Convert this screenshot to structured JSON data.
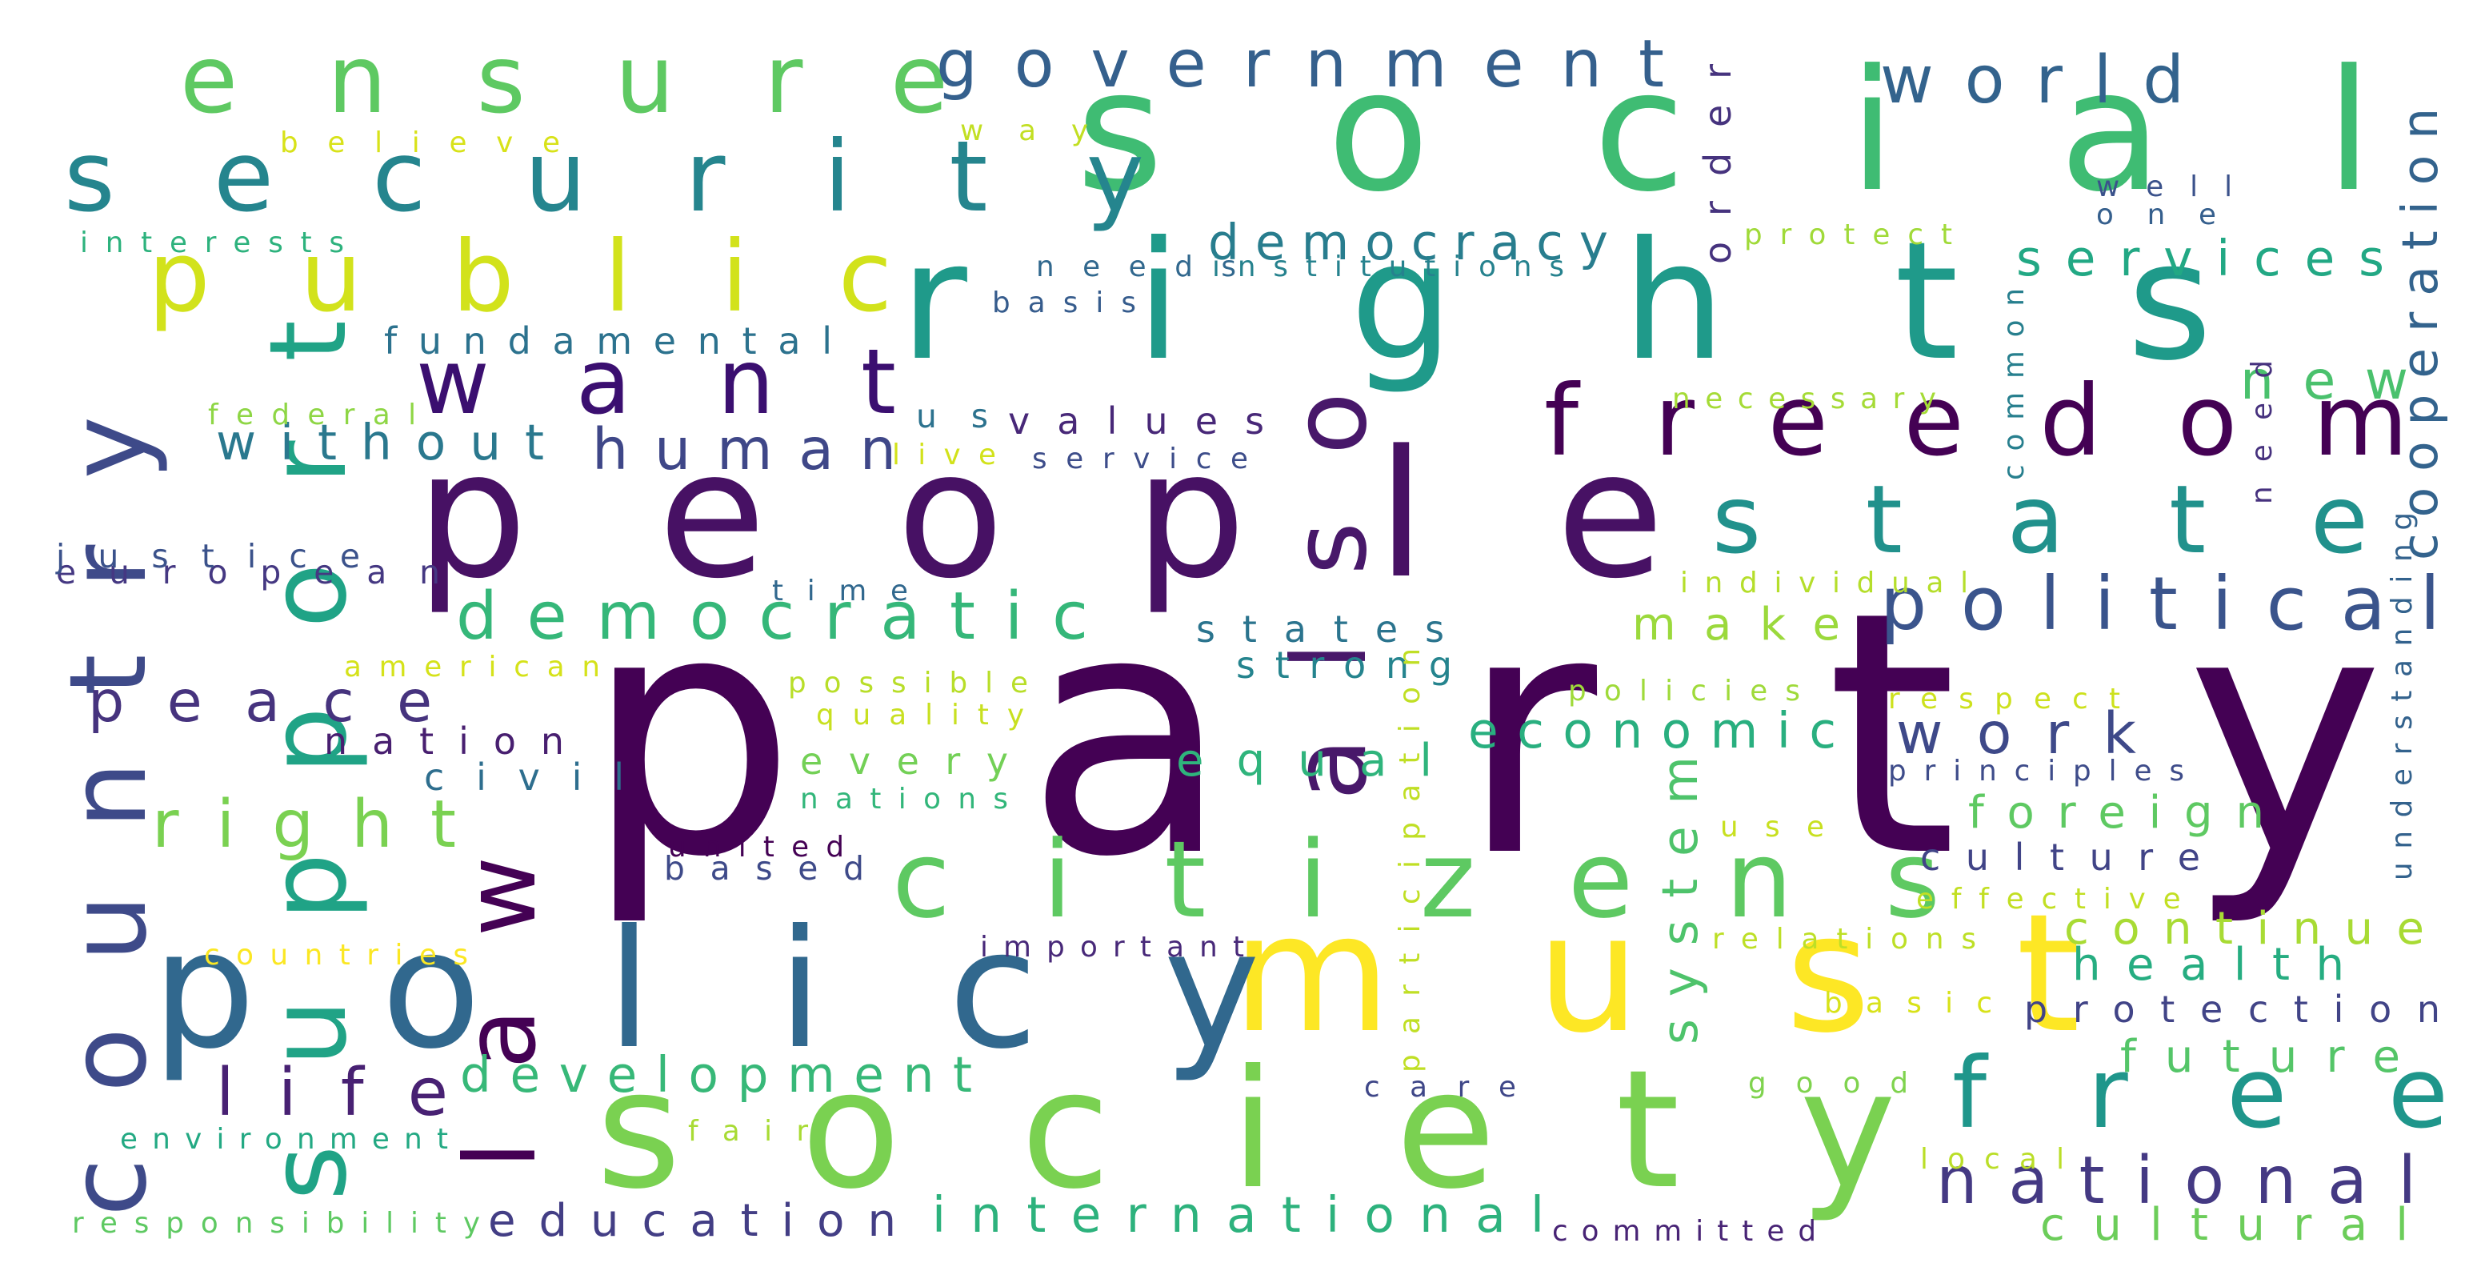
{
  "words": [
    {
      "text": "party",
      "color": "#440154",
      "rotated": false
    },
    {
      "text": "people",
      "color": "#471164",
      "rotated": false
    },
    {
      "text": "rights",
      "color": "#1f9a8a",
      "rotated": false
    },
    {
      "text": "social",
      "color": "#3fbc73",
      "rotated": false
    },
    {
      "text": "society",
      "color": "#7ad151",
      "rotated": false
    },
    {
      "text": "must",
      "color": "#fde725",
      "rotated": false
    },
    {
      "text": "policy",
      "color": "#31688e",
      "rotated": false
    },
    {
      "text": "security",
      "color": "#25858e",
      "rotated": false
    },
    {
      "text": "ensure",
      "color": "#5ec962",
      "rotated": false
    },
    {
      "text": "public",
      "color": "#d2e21b",
      "rotated": false
    },
    {
      "text": "citizens",
      "color": "#5ec962",
      "rotated": false
    },
    {
      "text": "freedom",
      "color": "#440154",
      "rotated": false
    },
    {
      "text": "state",
      "color": "#21918c",
      "rotated": false
    },
    {
      "text": "free",
      "color": "#1f968b",
      "rotated": false
    },
    {
      "text": "want",
      "color": "#3b0f70",
      "rotated": false
    },
    {
      "text": "government",
      "color": "#35608d",
      "rotated": false
    },
    {
      "text": "world",
      "color": "#33638d",
      "rotated": false
    },
    {
      "text": "country",
      "color": "#3e4a89",
      "rotated": true
    },
    {
      "text": "support",
      "color": "#20a386",
      "rotated": true
    },
    {
      "text": "law",
      "color": "#440154",
      "rotated": true
    },
    {
      "text": "also",
      "color": "#48186a",
      "rotated": true
    },
    {
      "text": "political",
      "color": "#3a548c",
      "rotated": false
    },
    {
      "text": "democratic",
      "color": "#35b779",
      "rotated": false
    },
    {
      "text": "human",
      "color": "#3f4788",
      "rotated": false
    },
    {
      "text": "peace",
      "color": "#46337e",
      "rotated": false
    },
    {
      "text": "right",
      "color": "#7ad151",
      "rotated": false
    },
    {
      "text": "national",
      "color": "#443983",
      "rotated": false
    },
    {
      "text": "international",
      "color": "#2db27d",
      "rotated": false
    },
    {
      "text": "education",
      "color": "#433e85",
      "rotated": false
    },
    {
      "text": "development",
      "color": "#37b878",
      "rotated": false
    },
    {
      "text": "life",
      "color": "#482173",
      "rotated": false
    },
    {
      "text": "economic",
      "color": "#29af7f",
      "rotated": false
    },
    {
      "text": "work",
      "color": "#3e4989",
      "rotated": false
    },
    {
      "text": "democracy",
      "color": "#287d8e",
      "rotated": false
    },
    {
      "text": "services",
      "color": "#22a884",
      "rotated": false
    },
    {
      "text": "new",
      "color": "#4ac16d",
      "rotated": false
    },
    {
      "text": "without",
      "color": "#2a788e",
      "rotated": false
    },
    {
      "text": "values",
      "color": "#482878",
      "rotated": false
    },
    {
      "text": "fundamental",
      "color": "#2c728e",
      "rotated": false
    },
    {
      "text": "make",
      "color": "#9bd93c",
      "rotated": false
    },
    {
      "text": "states",
      "color": "#2b748e",
      "rotated": false
    },
    {
      "text": "strong",
      "color": "#25848e",
      "rotated": false
    },
    {
      "text": "equal",
      "color": "#2fb47c",
      "rotated": false
    },
    {
      "text": "every",
      "color": "#73d056",
      "rotated": false
    },
    {
      "text": "nation",
      "color": "#481f70",
      "rotated": false
    },
    {
      "text": "civil",
      "color": "#2e6e8e",
      "rotated": false
    },
    {
      "text": "system",
      "color": "#4ec36b",
      "rotated": true
    },
    {
      "text": "continue",
      "color": "#a8db34",
      "rotated": false
    },
    {
      "text": "health",
      "color": "#26ad81",
      "rotated": false
    },
    {
      "text": "protection",
      "color": "#414487",
      "rotated": false
    },
    {
      "text": "future",
      "color": "#54c568",
      "rotated": false
    },
    {
      "text": "cultural",
      "color": "#6ccd5a",
      "rotated": false
    },
    {
      "text": "culture",
      "color": "#414487",
      "rotated": false
    },
    {
      "text": "foreign",
      "color": "#5ec962",
      "rotated": false
    },
    {
      "text": "cooperation",
      "color": "#33638d",
      "rotated": true
    },
    {
      "text": "order",
      "color": "#46337e",
      "rotated": true
    },
    {
      "text": "based",
      "color": "#3e4a89",
      "rotated": false
    },
    {
      "text": "european",
      "color": "#453882",
      "rotated": false
    },
    {
      "text": "justice",
      "color": "#3b528b",
      "rotated": false
    },
    {
      "text": "interests",
      "color": "#2db27d",
      "rotated": false
    },
    {
      "text": "believe",
      "color": "#d8e219",
      "rotated": false
    },
    {
      "text": "way",
      "color": "#c2df23",
      "rotated": false
    },
    {
      "text": "needs",
      "color": "#31688e",
      "rotated": false
    },
    {
      "text": "institutions",
      "color": "#26828e",
      "rotated": false
    },
    {
      "text": "protect",
      "color": "#a0da39",
      "rotated": false
    },
    {
      "text": "well",
      "color": "#3b528b",
      "rotated": false
    },
    {
      "text": "one",
      "color": "#355f8d",
      "rotated": false
    },
    {
      "text": "basis",
      "color": "#365c8d",
      "rotated": false
    },
    {
      "text": "federal",
      "color": "#8ed645",
      "rotated": false
    },
    {
      "text": "us",
      "color": "#2c728e",
      "rotated": false
    },
    {
      "text": "live",
      "color": "#d2e21b",
      "rotated": false
    },
    {
      "text": "service",
      "color": "#3d4d8a",
      "rotated": false
    },
    {
      "text": "necessary",
      "color": "#a5db36",
      "rotated": false
    },
    {
      "text": "common",
      "color": "#277f8e",
      "rotated": true
    },
    {
      "text": "need",
      "color": "#46317e",
      "rotated": true
    },
    {
      "text": "individual",
      "color": "#b5de2b",
      "rotated": false
    },
    {
      "text": "understanding",
      "color": "#33628d",
      "rotated": true
    },
    {
      "text": "time",
      "color": "#31688e",
      "rotated": false
    },
    {
      "text": "american",
      "color": "#d5e21a",
      "rotated": false
    },
    {
      "text": "possible",
      "color": "#b8de29",
      "rotated": false
    },
    {
      "text": "quality",
      "color": "#c8e020",
      "rotated": false
    },
    {
      "text": "policies",
      "color": "#9fda3a",
      "rotated": false
    },
    {
      "text": "respect",
      "color": "#cde11d",
      "rotated": false
    },
    {
      "text": "participation",
      "color": "#c0df25",
      "rotated": true
    },
    {
      "text": "principles",
      "color": "#3e4c8a",
      "rotated": false
    },
    {
      "text": "nations",
      "color": "#32b67a",
      "rotated": false
    },
    {
      "text": "united",
      "color": "#440154",
      "rotated": false
    },
    {
      "text": "use",
      "color": "#c8e020",
      "rotated": false
    },
    {
      "text": "effective",
      "color": "#c2df23",
      "rotated": false
    },
    {
      "text": "relations",
      "color": "#bddf26",
      "rotated": false
    },
    {
      "text": "countries",
      "color": "#fbe723",
      "rotated": false
    },
    {
      "text": "important",
      "color": "#482979",
      "rotated": false
    },
    {
      "text": "basic",
      "color": "#d8e219",
      "rotated": false
    },
    {
      "text": "care",
      "color": "#3f4788",
      "rotated": false
    },
    {
      "text": "good",
      "color": "#7fd34e",
      "rotated": false
    },
    {
      "text": "environment",
      "color": "#23a983",
      "rotated": false
    },
    {
      "text": "fair",
      "color": "#a8db34",
      "rotated": false
    },
    {
      "text": "local",
      "color": "#bade28",
      "rotated": false
    },
    {
      "text": "responsibility",
      "color": "#5ec962",
      "rotated": false
    },
    {
      "text": "committed",
      "color": "#482475",
      "rotated": false
    }
  ]
}
